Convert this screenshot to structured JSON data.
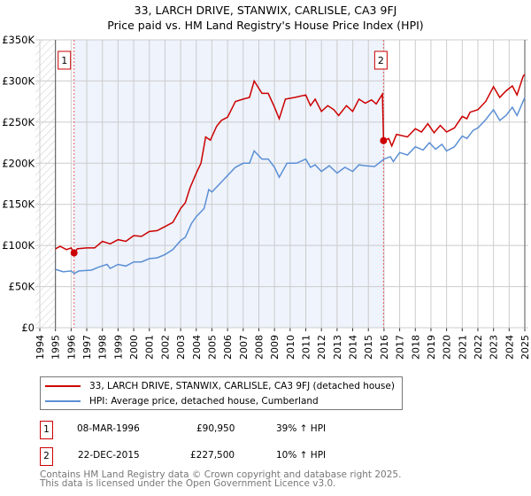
{
  "title_line1": "33, LARCH DRIVE, STANWIX, CARLISLE, CA3 9FJ",
  "title_line2": "Price paid vs. HM Land Registry's House Price Index (HPI)",
  "chart_data": {
    "type": "line",
    "title": "33, LARCH DRIVE, STANWIX, CARLISLE, CA3 9FJ — Price paid vs. HM Land Registry's House Price Index (HPI)",
    "xlim": [
      1994,
      2025
    ],
    "ylim": [
      0,
      350000
    ],
    "x_ticks": [
      "1994",
      "1995",
      "1996",
      "1997",
      "1998",
      "1999",
      "2000",
      "2001",
      "2002",
      "2003",
      "2004",
      "2005",
      "2006",
      "2007",
      "2008",
      "2009",
      "2010",
      "2011",
      "2012",
      "2013",
      "2014",
      "2015",
      "2016",
      "2017",
      "2018",
      "2019",
      "2020",
      "2021",
      "2022",
      "2023",
      "2024",
      "2025"
    ],
    "y_ticks": [
      {
        "v": 0,
        "label": "£0"
      },
      {
        "v": 50000,
        "label": "£50K"
      },
      {
        "v": 100000,
        "label": "£100K"
      },
      {
        "v": 150000,
        "label": "£150K"
      },
      {
        "v": 200000,
        "label": "£200K"
      },
      {
        "v": 250000,
        "label": "£250K"
      },
      {
        "v": 300000,
        "label": "£300K"
      },
      {
        "v": 350000,
        "label": "£350K"
      }
    ],
    "grid": true,
    "shaded_period": [
      1996.19,
      2015.97
    ],
    "hatched_before": 1995,
    "series": [
      {
        "name": "33, LARCH DRIVE, STANWIX, CARLISLE, CA3 9FJ (detached house)",
        "color": "#cc0000",
        "x": [
          1995.0,
          1995.3,
          1995.7,
          1996.0,
          1996.19,
          1996.4,
          1997.0,
          1997.5,
          1998.0,
          1998.5,
          1999.0,
          1999.5,
          2000.0,
          2000.5,
          2001.0,
          2001.5,
          2002.0,
          2002.5,
          2003.0,
          2003.3,
          2003.6,
          2004.0,
          2004.3,
          2004.6,
          2004.9,
          2005.3,
          2005.6,
          2006.0,
          2006.5,
          2007.0,
          2007.4,
          2007.7,
          2008.2,
          2008.6,
          2009.0,
          2009.3,
          2009.7,
          2010.3,
          2011.0,
          2011.3,
          2011.6,
          2012.0,
          2012.4,
          2012.8,
          2013.1,
          2013.6,
          2014.0,
          2014.4,
          2014.8,
          2015.2,
          2015.5,
          2015.9,
          2015.97,
          2016.3,
          2016.5,
          2016.8,
          2017.5,
          2018.0,
          2018.4,
          2018.8,
          2019.2,
          2019.6,
          2020.0,
          2020.5,
          2021.0,
          2021.3,
          2021.5,
          2022.0,
          2022.5,
          2023.0,
          2023.4,
          2023.8,
          2024.2,
          2024.5,
          2024.9,
          2025.0
        ],
        "y": [
          96000,
          99000,
          95000,
          97000,
          90950,
          96000,
          97000,
          97000,
          105000,
          102000,
          107000,
          105000,
          112000,
          111000,
          117000,
          118000,
          123000,
          128000,
          145000,
          152000,
          170000,
          188000,
          200000,
          232000,
          228000,
          245000,
          252000,
          256000,
          275000,
          278000,
          280000,
          300000,
          285000,
          285000,
          268000,
          254000,
          278000,
          280000,
          283000,
          270000,
          278000,
          263000,
          270000,
          265000,
          258000,
          270000,
          263000,
          278000,
          273000,
          277000,
          272000,
          284000,
          227500,
          230000,
          221000,
          235000,
          232000,
          242000,
          238000,
          248000,
          237000,
          246000,
          238000,
          243000,
          257000,
          254000,
          262000,
          265000,
          275000,
          293000,
          280000,
          288000,
          294000,
          283000,
          306000,
          308000
        ]
      },
      {
        "name": "HPI: Average price, detached house, Cumberland",
        "color": "#5b8fd4",
        "x": [
          1995.0,
          1995.5,
          1996.0,
          1996.2,
          1996.5,
          1997.3,
          1997.8,
          1998.3,
          1998.5,
          1999.0,
          1999.5,
          2000.0,
          2000.5,
          2001.0,
          2001.5,
          2002.0,
          2002.5,
          2003.0,
          2003.3,
          2003.7,
          2004.0,
          2004.5,
          2004.8,
          2005.0,
          2005.5,
          2006.0,
          2006.5,
          2007.0,
          2007.4,
          2007.7,
          2008.2,
          2008.6,
          2009.0,
          2009.3,
          2009.8,
          2010.4,
          2011.0,
          2011.3,
          2011.6,
          2012.0,
          2012.5,
          2013.0,
          2013.5,
          2014.0,
          2014.4,
          2014.8,
          2015.4,
          2016.0,
          2016.4,
          2016.6,
          2017.0,
          2017.5,
          2018.0,
          2018.5,
          2018.9,
          2019.3,
          2019.7,
          2020.0,
          2020.5,
          2021.0,
          2021.3,
          2021.7,
          2022.0,
          2022.5,
          2023.0,
          2023.4,
          2023.8,
          2024.2,
          2024.5,
          2025.0
        ],
        "y": [
          71000,
          68000,
          69000,
          66000,
          69000,
          70000,
          74000,
          77000,
          72000,
          77000,
          75000,
          80000,
          80000,
          84000,
          85000,
          89000,
          95000,
          106000,
          110000,
          127000,
          135000,
          145000,
          168000,
          165000,
          175000,
          185000,
          195000,
          200000,
          200000,
          215000,
          205000,
          205000,
          195000,
          183000,
          200000,
          200000,
          205000,
          195000,
          198000,
          190000,
          197000,
          188000,
          195000,
          190000,
          198000,
          197000,
          196000,
          205000,
          208000,
          202000,
          213000,
          210000,
          220000,
          216000,
          225000,
          217000,
          223000,
          215000,
          220000,
          233000,
          230000,
          240000,
          243000,
          253000,
          265000,
          252000,
          258000,
          268000,
          258000,
          280000
        ]
      }
    ],
    "sales": [
      {
        "label": "1",
        "x": 1996.19,
        "y": 90950
      },
      {
        "label": "2",
        "x": 2015.97,
        "y": 227500
      }
    ]
  },
  "legend": {
    "property": "33, LARCH DRIVE, STANWIX, CARLISLE, CA3 9FJ (detached house)",
    "hpi": "HPI: Average price, detached house, Cumberland"
  },
  "transactions": [
    {
      "num": "1",
      "date": "08-MAR-1996",
      "price": "£90,950",
      "hpi": "39% ↑ HPI"
    },
    {
      "num": "2",
      "date": "22-DEC-2015",
      "price": "£227,500",
      "hpi": "10% ↑ HPI"
    }
  ],
  "footer": {
    "line1": "Contains HM Land Registry data © Crown copyright and database right 2025.",
    "line2": "This data is licensed under the Open Government Licence v3.0."
  }
}
